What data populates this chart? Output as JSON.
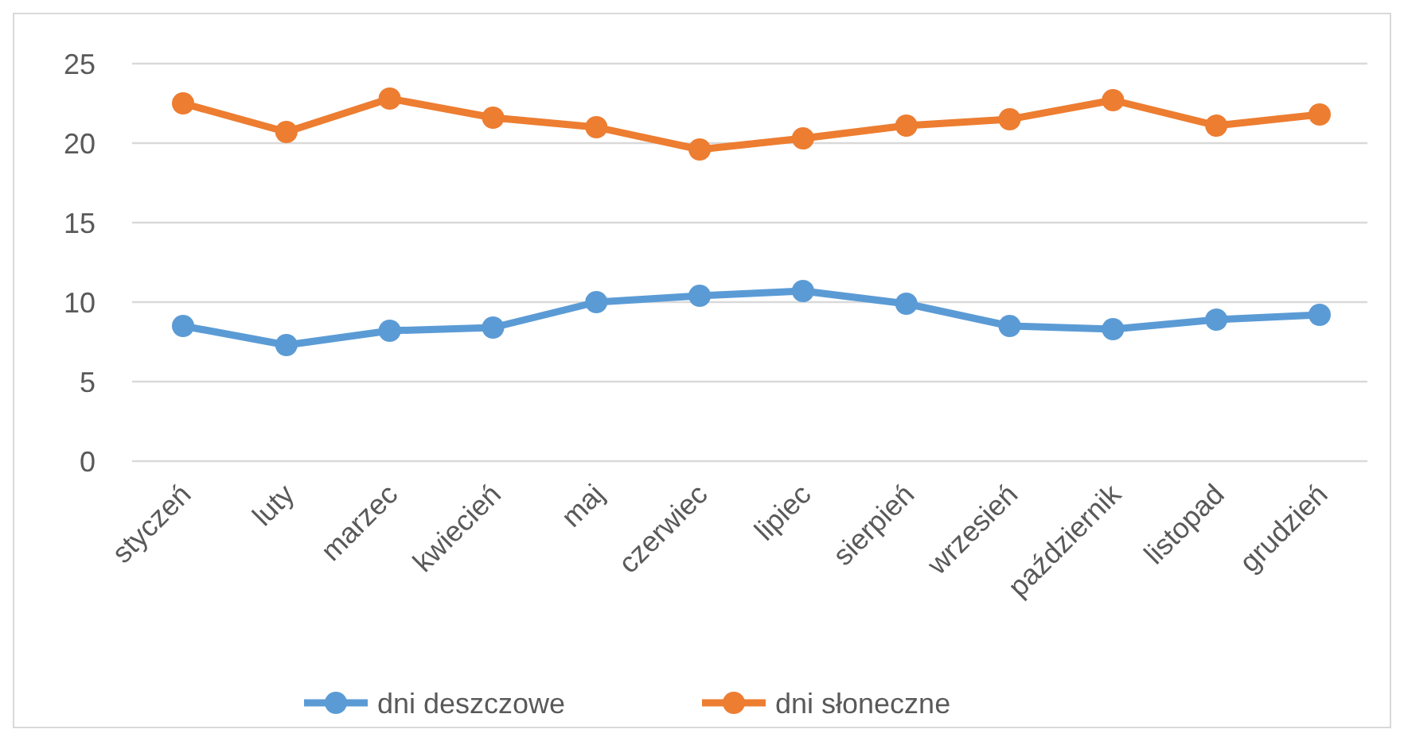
{
  "chart_data": {
    "type": "line",
    "categories": [
      "styczeń",
      "luty",
      "marzec",
      "kwiecień",
      "maj",
      "czerwiec",
      "lipiec",
      "sierpień",
      "wrzesień",
      "październik",
      "listopad",
      "grudzień"
    ],
    "series": [
      {
        "name": "dni deszczowe",
        "color": "#5b9bd5",
        "values": [
          8.5,
          7.3,
          8.2,
          8.4,
          10.0,
          10.4,
          10.7,
          9.9,
          8.5,
          8.3,
          8.9,
          9.2
        ]
      },
      {
        "name": "dni słoneczne",
        "color": "#ed7d31",
        "values": [
          22.5,
          20.7,
          22.8,
          21.6,
          21.0,
          19.6,
          20.3,
          21.1,
          21.5,
          22.7,
          21.1,
          21.8
        ]
      }
    ],
    "ylim": [
      0,
      25
    ],
    "yticks": [
      0,
      5,
      10,
      15,
      20,
      25
    ],
    "grid": "y",
    "legend": "bottom",
    "marker": "circle",
    "line_style": "solid"
  }
}
